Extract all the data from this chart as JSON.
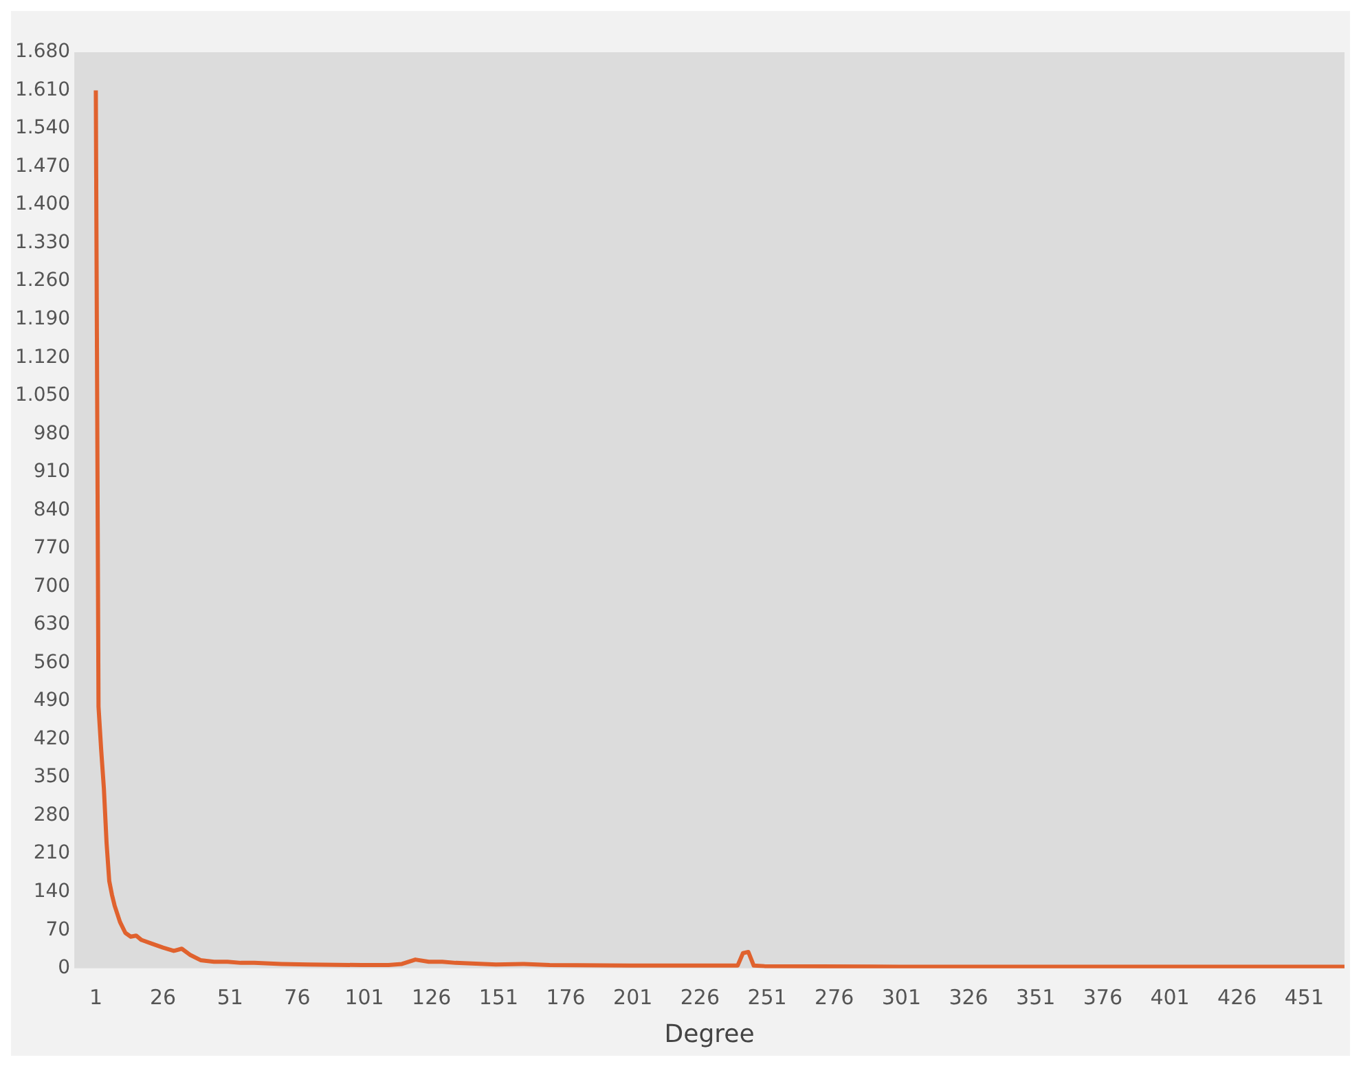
{
  "chart_data": {
    "type": "line",
    "xlabel": "Degree",
    "x": [
      1,
      2,
      3,
      4,
      5,
      6,
      7,
      8,
      10,
      12,
      14,
      16,
      18,
      22,
      26,
      30,
      33,
      36,
      40,
      45,
      50,
      55,
      60,
      70,
      80,
      100,
      110,
      115,
      120,
      125,
      130,
      135,
      150,
      160,
      170,
      200,
      240,
      242,
      244,
      246,
      250,
      300,
      350,
      400,
      466
    ],
    "series": [
      {
        "color": "#e0622e",
        "values": [
          1610,
          480,
          400,
          330,
          230,
          160,
          135,
          115,
          85,
          65,
          58,
          60,
          52,
          45,
          38,
          32,
          36,
          25,
          15,
          12,
          12,
          10,
          10,
          8,
          7,
          6,
          6,
          8,
          16,
          12,
          12,
          10,
          7,
          8,
          6,
          5,
          5,
          28,
          30,
          5,
          4,
          3,
          3,
          3,
          3
        ]
      }
    ],
    "xlim": [
      -7,
      466
    ],
    "xticks": [
      1,
      26,
      51,
      76,
      101,
      126,
      151,
      176,
      201,
      226,
      251,
      276,
      301,
      326,
      351,
      376,
      401,
      426,
      451
    ],
    "ylim": [
      0,
      1680
    ],
    "yticks": [
      0,
      70,
      140,
      210,
      280,
      350,
      420,
      490,
      560,
      630,
      700,
      770,
      840,
      910,
      980,
      {
        "value": 1050,
        "label": "1.050"
      },
      {
        "value": 1120,
        "label": "1.120"
      },
      {
        "value": 1190,
        "label": "1.190"
      },
      {
        "value": 1260,
        "label": "1.260"
      },
      {
        "value": 1330,
        "label": "1.330"
      },
      {
        "value": 1400,
        "label": "1.400"
      },
      {
        "value": 1470,
        "label": "1.470"
      },
      {
        "value": 1540,
        "label": "1.540"
      },
      {
        "value": 1610,
        "label": "1.610"
      },
      {
        "value": 1680,
        "label": "1.680"
      }
    ],
    "grid": false,
    "legend": false
  }
}
